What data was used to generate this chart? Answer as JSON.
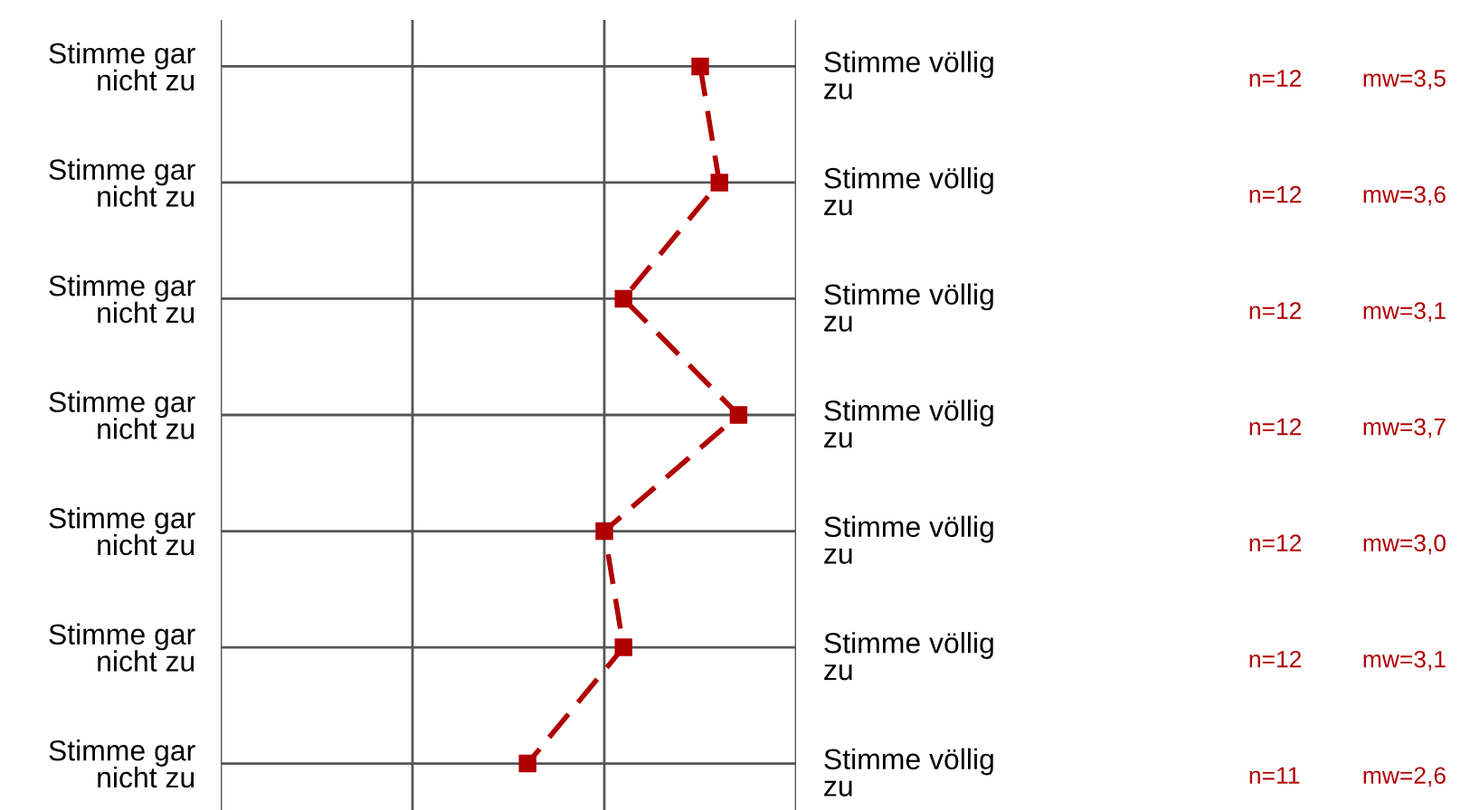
{
  "chart_data": {
    "type": "line",
    "orientation": "horizontal",
    "categories": [
      "Stimme gar\nnicht zu",
      "Stimme gar\nnicht zu",
      "Stimme gar\nnicht zu",
      "Stimme gar\nnicht zu",
      "Stimme gar\nnicht zu",
      "Stimme gar\nnicht zu",
      "Stimme gar\nnicht zu"
    ],
    "series": [
      {
        "color": "#b00000",
        "values": [
          3.5,
          3.6,
          3.1,
          3.7,
          3.0,
          3.1,
          2.6
        ],
        "value_labels": [
          "mw=3,5",
          "mw=3,6",
          "mw=3,1",
          "mw=3,7",
          "mw=3,0",
          "mw=3,1",
          "mw=2,6"
        ]
      }
    ],
    "annotations": [
      "Stimme völlig\nzu",
      "Stimme völlig\nzu",
      "Stimme völlig\nzu",
      "Stimme völlig\nzu",
      "Stimme völlig\nzu",
      "Stimme völlig\nzu",
      "Stimme völlig\nzu",
      "n=12",
      "n=12",
      "n=12",
      "n=12",
      "n=12",
      "n=12",
      "n=11"
    ],
    "xlim": [
      1,
      4
    ],
    "xticks": [
      {
        "value": 1,
        "label": null
      },
      {
        "value": 2,
        "label": null
      },
      {
        "value": 3,
        "label": null
      },
      {
        "value": 4,
        "label": null
      }
    ],
    "grid": true,
    "marker": "square",
    "line_style": "dashed",
    "legend": false
  }
}
